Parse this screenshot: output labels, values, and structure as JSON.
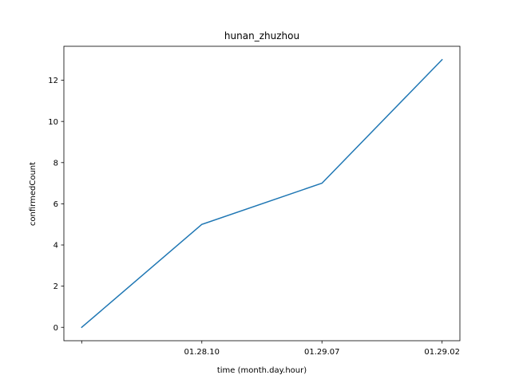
{
  "chart_data": {
    "type": "line",
    "title": "hunan_zhuzhou",
    "xlabel": "time (month.day.hour)",
    "ylabel": "confirmedCount",
    "categories": [
      "",
      "01.28.10",
      "01.29.07",
      "01.29.02"
    ],
    "series": [
      {
        "values": [
          0,
          5,
          7,
          13
        ],
        "color": "#1f77b4"
      }
    ],
    "ylim": [
      -0.65,
      13.65
    ],
    "yticks": [
      0,
      2,
      4,
      6,
      8,
      10,
      12
    ],
    "grid": false,
    "legend": "none"
  }
}
